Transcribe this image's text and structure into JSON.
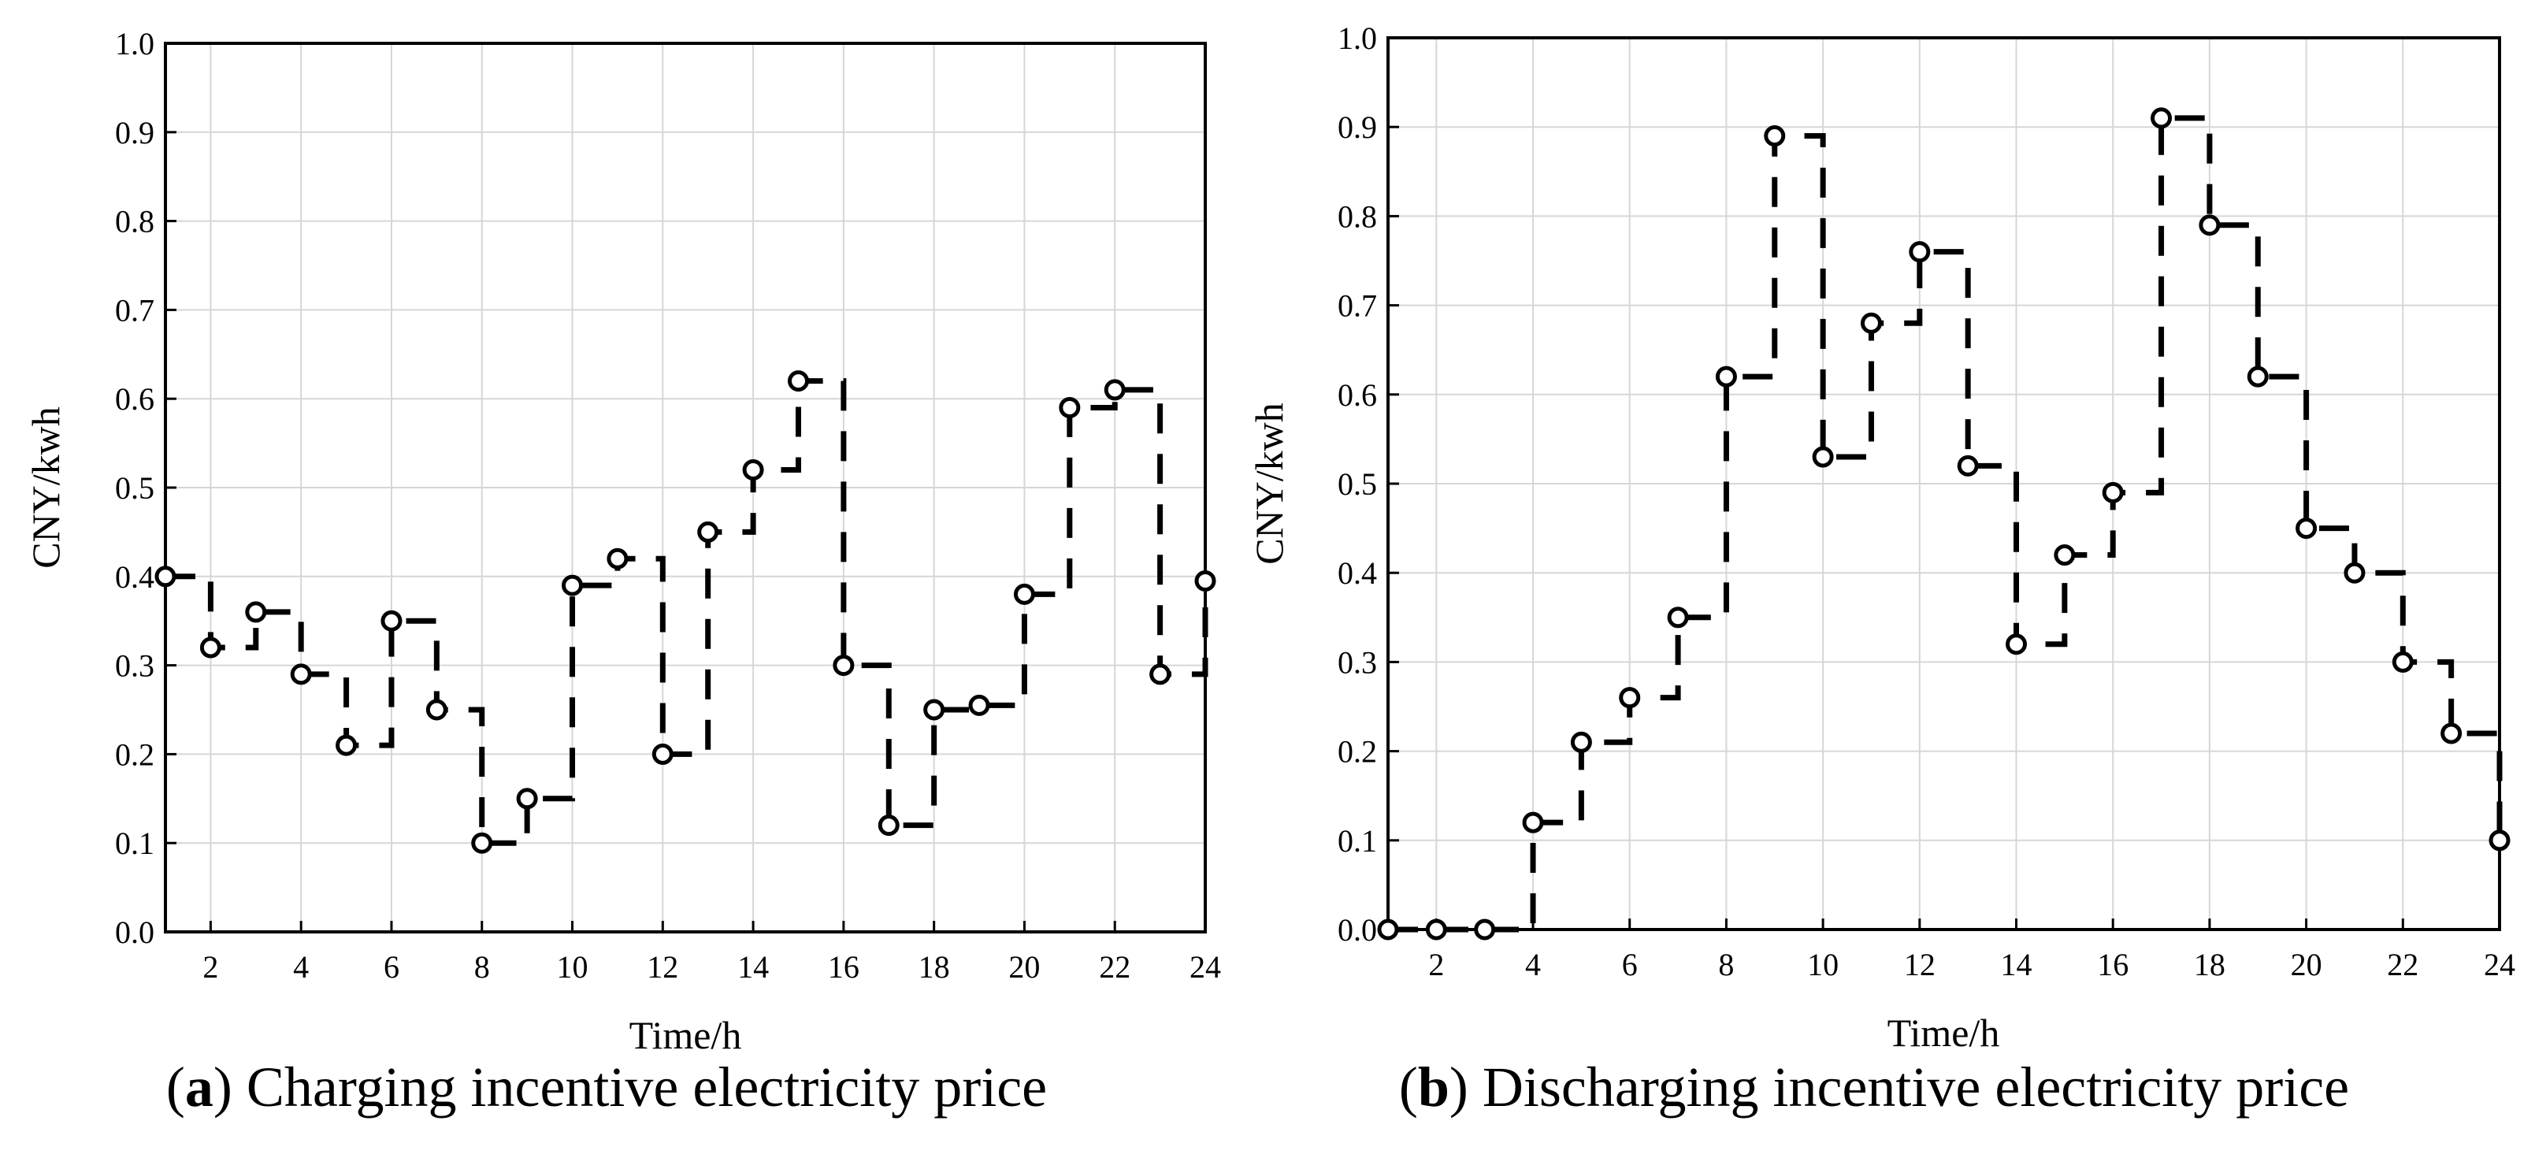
{
  "chart_data": [
    {
      "type": "line",
      "step": "post",
      "panel_letter": "a",
      "caption": "Charging incentive electricity price",
      "xlabel": "Time/h",
      "ylabel": "CNY/kwh",
      "xlim": [
        1,
        24
      ],
      "ylim": [
        0.0,
        1.0
      ],
      "xticks": [
        "2",
        "4",
        "6",
        "8",
        "10",
        "12",
        "14",
        "16",
        "18",
        "20",
        "22",
        "24"
      ],
      "yticks": [
        "0.0",
        "0.1",
        "0.2",
        "0.3",
        "0.4",
        "0.5",
        "0.6",
        "0.7",
        "0.8",
        "0.9",
        "1.0"
      ],
      "grid": true,
      "x": [
        1,
        2,
        3,
        4,
        5,
        6,
        7,
        8,
        9,
        10,
        11,
        12,
        13,
        14,
        15,
        16,
        17,
        18,
        19,
        20,
        21,
        22,
        23,
        24
      ],
      "values": [
        0.4,
        0.32,
        0.36,
        0.29,
        0.21,
        0.35,
        0.25,
        0.1,
        0.15,
        0.39,
        0.42,
        0.2,
        0.45,
        0.52,
        0.62,
        0.3,
        0.12,
        0.25,
        0.255,
        0.38,
        0.59,
        0.61,
        0.29,
        0.395
      ]
    },
    {
      "type": "line",
      "step": "post",
      "panel_letter": "b",
      "caption": "Discharging incentive electricity price",
      "xlabel": "Time/h",
      "ylabel": "CNY/kwh",
      "xlim": [
        1,
        24
      ],
      "ylim": [
        0.0,
        1.0
      ],
      "xticks": [
        "2",
        "4",
        "6",
        "8",
        "10",
        "12",
        "14",
        "16",
        "18",
        "20",
        "22",
        "24"
      ],
      "yticks": [
        "0.0",
        "0.1",
        "0.2",
        "0.3",
        "0.4",
        "0.5",
        "0.6",
        "0.7",
        "0.8",
        "0.9",
        "1.0"
      ],
      "grid": true,
      "x": [
        1,
        2,
        3,
        4,
        5,
        6,
        7,
        8,
        9,
        10,
        11,
        12,
        13,
        14,
        15,
        16,
        17,
        18,
        19,
        20,
        21,
        22,
        23,
        24
      ],
      "values": [
        0.0,
        0.0,
        0.0,
        0.12,
        0.21,
        0.26,
        0.35,
        0.62,
        0.89,
        0.53,
        0.68,
        0.76,
        0.52,
        0.32,
        0.42,
        0.49,
        0.91,
        0.79,
        0.62,
        0.45,
        0.4,
        0.3,
        0.22,
        0.1
      ]
    }
  ]
}
